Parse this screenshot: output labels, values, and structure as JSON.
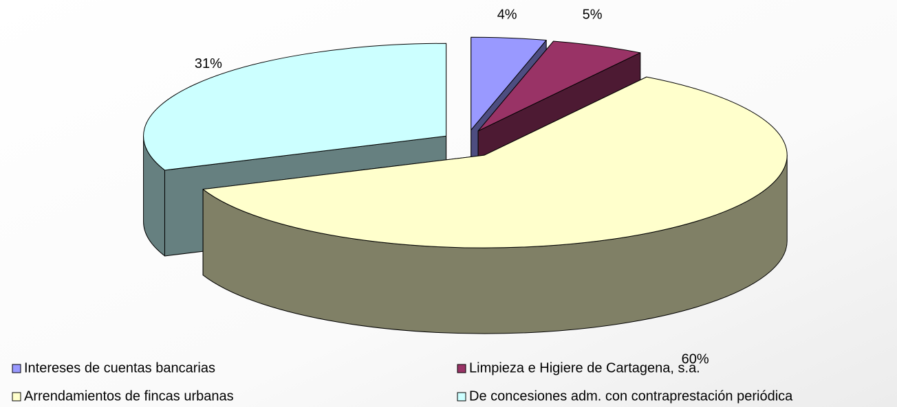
{
  "chart_data": {
    "type": "pie",
    "categories": [
      "Intereses de cuentas bancarias",
      "Limpieza e Higiere de Cartagena, s.a.",
      "Arrendamientos de fincas urbanas",
      "De concesiones adm. con contraprestación periódica"
    ],
    "values": [
      4,
      5,
      60,
      31
    ],
    "value_labels": [
      "4%",
      "5%",
      "60%",
      "31%"
    ],
    "colors": [
      "#9999ff",
      "#993366",
      "#ffffcc",
      "#ccffff"
    ],
    "legend": "bottom"
  }
}
